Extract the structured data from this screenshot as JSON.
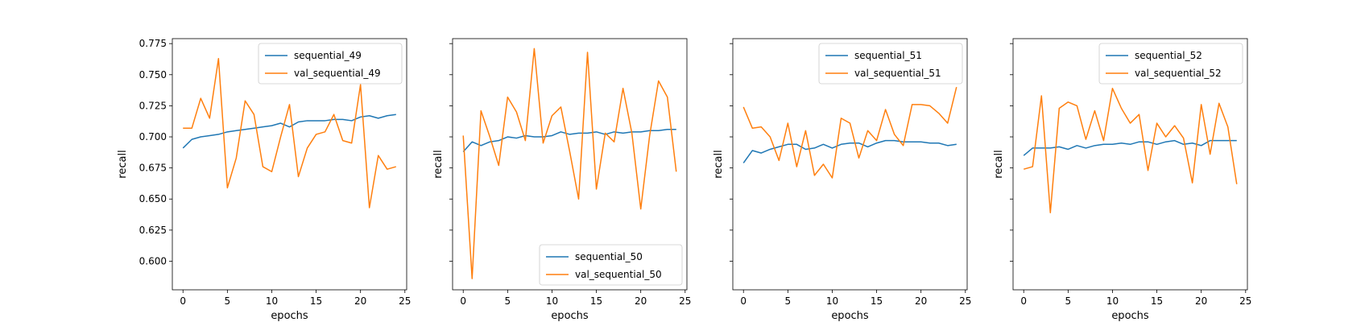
{
  "colors": {
    "train": "#1f77b4",
    "val": "#ff7f0e"
  },
  "chart_data": [
    {
      "type": "line",
      "xlabel": "epochs",
      "ylabel": "recall",
      "xlim": [
        -1.2,
        25.2
      ],
      "ylim": [
        0.577,
        0.779
      ],
      "xticks": [
        "0",
        "5",
        "10",
        "15",
        "20",
        "25"
      ],
      "yticks": [
        "0.600",
        "0.625",
        "0.650",
        "0.675",
        "0.700",
        "0.725",
        "0.750",
        "0.775"
      ],
      "legend": "top-right",
      "grid": false,
      "x": [
        0,
        1,
        2,
        3,
        4,
        5,
        6,
        7,
        8,
        9,
        10,
        11,
        12,
        13,
        14,
        15,
        16,
        17,
        18,
        19,
        20,
        21,
        22,
        23,
        24
      ],
      "series": [
        {
          "name": "sequential_49",
          "values": [
            0.691,
            0.698,
            0.7,
            0.701,
            0.702,
            0.704,
            0.705,
            0.706,
            0.707,
            0.708,
            0.709,
            0.711,
            0.708,
            0.712,
            0.713,
            0.713,
            0.713,
            0.714,
            0.714,
            0.713,
            0.716,
            0.717,
            0.715,
            0.717,
            0.718
          ]
        },
        {
          "name": "val_sequential_49",
          "values": [
            0.707,
            0.707,
            0.731,
            0.715,
            0.763,
            0.659,
            0.683,
            0.729,
            0.718,
            0.676,
            0.672,
            0.7,
            0.726,
            0.668,
            0.691,
            0.702,
            0.704,
            0.718,
            0.697,
            0.695,
            0.742,
            0.643,
            0.685,
            0.674,
            0.676
          ]
        }
      ]
    },
    {
      "type": "line",
      "xlabel": "epochs",
      "ylabel": "recall",
      "xlim": [
        -1.2,
        25.2
      ],
      "ylim": [
        0.577,
        0.779
      ],
      "xticks": [
        "0",
        "5",
        "10",
        "15",
        "20",
        "25"
      ],
      "yticks": [],
      "legend": "bottom-right",
      "grid": false,
      "x": [
        0,
        1,
        2,
        3,
        4,
        5,
        6,
        7,
        8,
        9,
        10,
        11,
        12,
        13,
        14,
        15,
        16,
        17,
        18,
        19,
        20,
        21,
        22,
        23,
        24
      ],
      "series": [
        {
          "name": "sequential_50",
          "values": [
            0.688,
            0.696,
            0.693,
            0.696,
            0.697,
            0.7,
            0.699,
            0.701,
            0.7,
            0.7,
            0.701,
            0.704,
            0.702,
            0.703,
            0.703,
            0.704,
            0.702,
            0.704,
            0.703,
            0.704,
            0.704,
            0.705,
            0.705,
            0.706,
            0.706
          ]
        },
        {
          "name": "val_sequential_50",
          "values": [
            0.701,
            0.586,
            0.721,
            0.7,
            0.677,
            0.732,
            0.72,
            0.697,
            0.771,
            0.695,
            0.717,
            0.724,
            0.688,
            0.65,
            0.768,
            0.658,
            0.703,
            0.696,
            0.739,
            0.703,
            0.642,
            0.701,
            0.745,
            0.732,
            0.672
          ]
        }
      ]
    },
    {
      "type": "line",
      "xlabel": "epochs",
      "ylabel": "recall",
      "xlim": [
        -1.2,
        25.2
      ],
      "ylim": [
        0.577,
        0.779
      ],
      "xticks": [
        "0",
        "5",
        "10",
        "15",
        "20",
        "25"
      ],
      "yticks": [],
      "legend": "top-right",
      "grid": false,
      "x": [
        0,
        1,
        2,
        3,
        4,
        5,
        6,
        7,
        8,
        9,
        10,
        11,
        12,
        13,
        14,
        15,
        16,
        17,
        18,
        19,
        20,
        21,
        22,
        23,
        24
      ],
      "series": [
        {
          "name": "sequential_51",
          "values": [
            0.679,
            0.689,
            0.687,
            0.69,
            0.692,
            0.694,
            0.694,
            0.69,
            0.691,
            0.694,
            0.691,
            0.694,
            0.695,
            0.695,
            0.692,
            0.695,
            0.697,
            0.697,
            0.696,
            0.696,
            0.696,
            0.695,
            0.695,
            0.693,
            0.694
          ]
        },
        {
          "name": "val_sequential_51",
          "values": [
            0.724,
            0.707,
            0.708,
            0.7,
            0.681,
            0.711,
            0.676,
            0.705,
            0.669,
            0.678,
            0.667,
            0.715,
            0.711,
            0.683,
            0.705,
            0.697,
            0.722,
            0.702,
            0.693,
            0.726,
            0.726,
            0.725,
            0.719,
            0.711,
            0.74
          ]
        }
      ]
    },
    {
      "type": "line",
      "xlabel": "epochs",
      "ylabel": "recall",
      "xlim": [
        -1.2,
        25.2
      ],
      "ylim": [
        0.577,
        0.779
      ],
      "xticks": [
        "0",
        "5",
        "10",
        "15",
        "20",
        "25"
      ],
      "yticks": [],
      "legend": "top-right",
      "grid": false,
      "x": [
        0,
        1,
        2,
        3,
        4,
        5,
        6,
        7,
        8,
        9,
        10,
        11,
        12,
        13,
        14,
        15,
        16,
        17,
        18,
        19,
        20,
        21,
        22,
        23,
        24
      ],
      "series": [
        {
          "name": "sequential_52",
          "values": [
            0.685,
            0.691,
            0.691,
            0.691,
            0.692,
            0.69,
            0.693,
            0.691,
            0.693,
            0.694,
            0.694,
            0.695,
            0.694,
            0.696,
            0.696,
            0.694,
            0.696,
            0.697,
            0.694,
            0.695,
            0.693,
            0.697,
            0.697,
            0.697,
            0.697
          ]
        },
        {
          "name": "val_sequential_52",
          "values": [
            0.674,
            0.676,
            0.733,
            0.639,
            0.723,
            0.728,
            0.725,
            0.698,
            0.721,
            0.697,
            0.739,
            0.723,
            0.711,
            0.718,
            0.673,
            0.711,
            0.7,
            0.709,
            0.699,
            0.663,
            0.726,
            0.686,
            0.727,
            0.708,
            0.662
          ]
        }
      ]
    }
  ]
}
